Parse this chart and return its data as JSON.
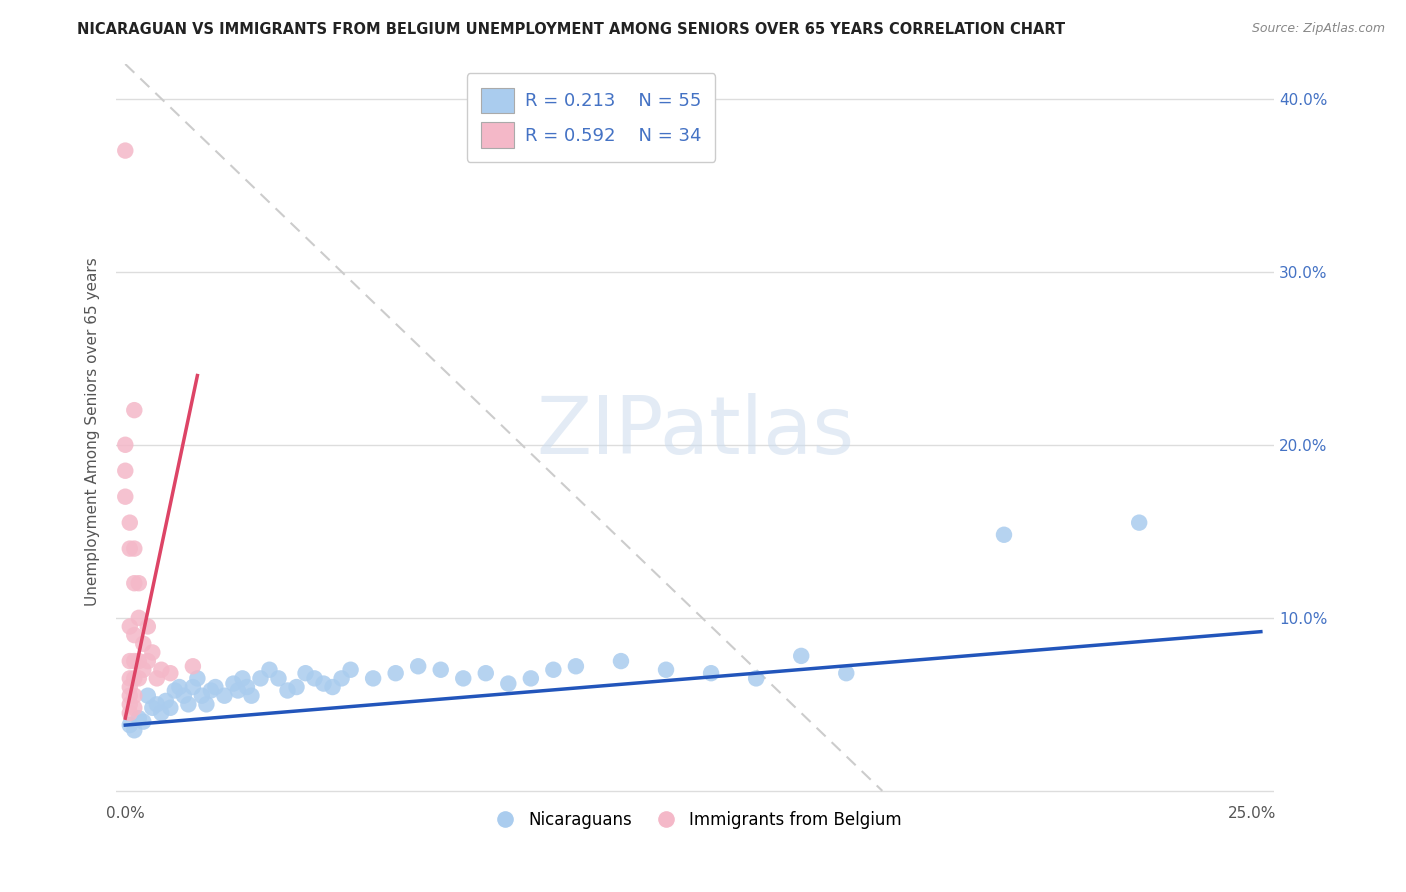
{
  "title": "NICARAGUAN VS IMMIGRANTS FROM BELGIUM UNEMPLOYMENT AMONG SENIORS OVER 65 YEARS CORRELATION CHART",
  "source": "Source: ZipAtlas.com",
  "ylabel": "Unemployment Among Seniors over 65 years",
  "xlim": [
    -0.002,
    0.255
  ],
  "ylim": [
    -0.005,
    0.42
  ],
  "xticks": [
    0.0,
    0.05,
    0.1,
    0.15,
    0.2,
    0.25
  ],
  "xticklabels": [
    "0.0%",
    "",
    "",
    "",
    "",
    "25.0%"
  ],
  "yticks": [
    0.0,
    0.1,
    0.2,
    0.3,
    0.4
  ],
  "right_yticklabels": [
    "",
    "10.0%",
    "20.0%",
    "30.0%",
    "40.0%"
  ],
  "legend_r_blue": "R = 0.213",
  "legend_n_blue": "N = 55",
  "legend_r_pink": "R = 0.592",
  "legend_n_pink": "N = 34",
  "legend_labels_bottom": [
    "Nicaraguans",
    "Immigrants from Belgium"
  ],
  "blue_color": "#aaccee",
  "pink_color": "#f4b8c8",
  "trend_blue_color": "#2255bb",
  "trend_pink_color": "#dd4466",
  "watermark_text": "ZIPatlas",
  "background_color": "#ffffff",
  "blue_scatter": [
    [
      0.001,
      0.038
    ],
    [
      0.002,
      0.035
    ],
    [
      0.003,
      0.042
    ],
    [
      0.004,
      0.04
    ],
    [
      0.005,
      0.055
    ],
    [
      0.006,
      0.048
    ],
    [
      0.007,
      0.05
    ],
    [
      0.008,
      0.045
    ],
    [
      0.009,
      0.052
    ],
    [
      0.01,
      0.048
    ],
    [
      0.011,
      0.058
    ],
    [
      0.012,
      0.06
    ],
    [
      0.013,
      0.055
    ],
    [
      0.014,
      0.05
    ],
    [
      0.015,
      0.06
    ],
    [
      0.016,
      0.065
    ],
    [
      0.017,
      0.055
    ],
    [
      0.018,
      0.05
    ],
    [
      0.019,
      0.058
    ],
    [
      0.02,
      0.06
    ],
    [
      0.022,
      0.055
    ],
    [
      0.024,
      0.062
    ],
    [
      0.025,
      0.058
    ],
    [
      0.026,
      0.065
    ],
    [
      0.027,
      0.06
    ],
    [
      0.028,
      0.055
    ],
    [
      0.03,
      0.065
    ],
    [
      0.032,
      0.07
    ],
    [
      0.034,
      0.065
    ],
    [
      0.036,
      0.058
    ],
    [
      0.038,
      0.06
    ],
    [
      0.04,
      0.068
    ],
    [
      0.042,
      0.065
    ],
    [
      0.044,
      0.062
    ],
    [
      0.046,
      0.06
    ],
    [
      0.048,
      0.065
    ],
    [
      0.05,
      0.07
    ],
    [
      0.055,
      0.065
    ],
    [
      0.06,
      0.068
    ],
    [
      0.065,
      0.072
    ],
    [
      0.07,
      0.07
    ],
    [
      0.075,
      0.065
    ],
    [
      0.08,
      0.068
    ],
    [
      0.085,
      0.062
    ],
    [
      0.09,
      0.065
    ],
    [
      0.095,
      0.07
    ],
    [
      0.1,
      0.072
    ],
    [
      0.11,
      0.075
    ],
    [
      0.12,
      0.07
    ],
    [
      0.13,
      0.068
    ],
    [
      0.14,
      0.065
    ],
    [
      0.15,
      0.078
    ],
    [
      0.16,
      0.068
    ],
    [
      0.195,
      0.148
    ],
    [
      0.225,
      0.155
    ]
  ],
  "pink_scatter": [
    [
      0.0,
      0.37
    ],
    [
      0.0,
      0.2
    ],
    [
      0.0,
      0.185
    ],
    [
      0.0,
      0.17
    ],
    [
      0.001,
      0.155
    ],
    [
      0.001,
      0.14
    ],
    [
      0.001,
      0.095
    ],
    [
      0.001,
      0.075
    ],
    [
      0.001,
      0.065
    ],
    [
      0.001,
      0.06
    ],
    [
      0.001,
      0.055
    ],
    [
      0.001,
      0.05
    ],
    [
      0.001,
      0.045
    ],
    [
      0.002,
      0.22
    ],
    [
      0.002,
      0.14
    ],
    [
      0.002,
      0.12
    ],
    [
      0.002,
      0.09
    ],
    [
      0.002,
      0.075
    ],
    [
      0.002,
      0.065
    ],
    [
      0.002,
      0.055
    ],
    [
      0.002,
      0.048
    ],
    [
      0.003,
      0.12
    ],
    [
      0.003,
      0.1
    ],
    [
      0.003,
      0.075
    ],
    [
      0.003,
      0.065
    ],
    [
      0.004,
      0.085
    ],
    [
      0.004,
      0.07
    ],
    [
      0.005,
      0.095
    ],
    [
      0.005,
      0.075
    ],
    [
      0.006,
      0.08
    ],
    [
      0.007,
      0.065
    ],
    [
      0.008,
      0.07
    ],
    [
      0.01,
      0.068
    ],
    [
      0.015,
      0.072
    ]
  ],
  "blue_trend_x": [
    0.0,
    0.252
  ],
  "blue_trend_y": [
    0.038,
    0.092
  ],
  "pink_trend_x": [
    0.0,
    0.016
  ],
  "pink_trend_y": [
    0.042,
    0.24
  ],
  "dash_line_x": [
    0.0,
    0.168
  ],
  "dash_line_y": [
    0.42,
    0.0
  ]
}
